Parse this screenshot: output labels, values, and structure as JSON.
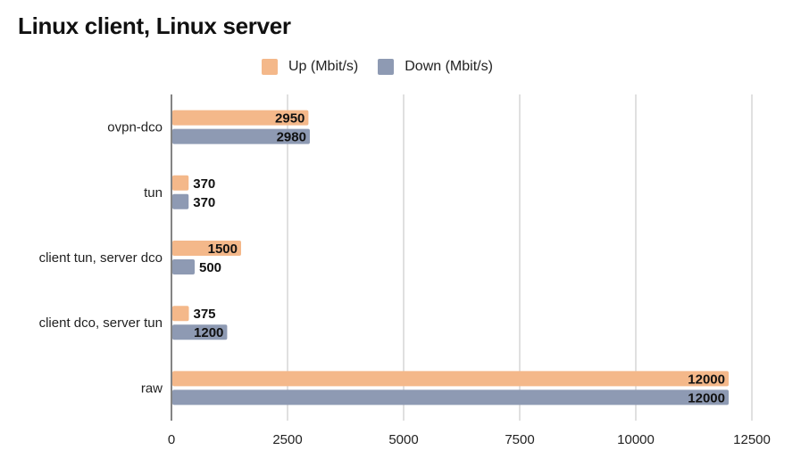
{
  "chart_data": {
    "type": "bar",
    "orientation": "horizontal",
    "title": "Linux client, Linux server",
    "xlabel": "",
    "ylabel": "",
    "categories": [
      "ovpn-dco",
      "tun",
      "client tun, server dco",
      "client dco, server tun",
      "raw"
    ],
    "series": [
      {
        "name": "Up (Mbit/s)",
        "color": "#F4B88A",
        "values": [
          2950,
          370,
          1500,
          375,
          12000
        ],
        "labels": [
          "2950",
          "370",
          "1500",
          "375",
          "12000"
        ]
      },
      {
        "name": "Down (Mbit/s)",
        "color": "#8E9AB3",
        "values": [
          2980,
          370,
          500,
          1200,
          12000
        ],
        "labels": [
          "2980",
          "370",
          "500",
          "1200",
          "12000"
        ]
      }
    ],
    "xlim": [
      0,
      12500
    ],
    "xticks": [
      0,
      2500,
      5000,
      7500,
      10000,
      12500
    ],
    "xtick_labels": [
      "0",
      "2500",
      "5000",
      "7500",
      "10000",
      "12500"
    ],
    "grid": true,
    "legend_position": "top"
  }
}
